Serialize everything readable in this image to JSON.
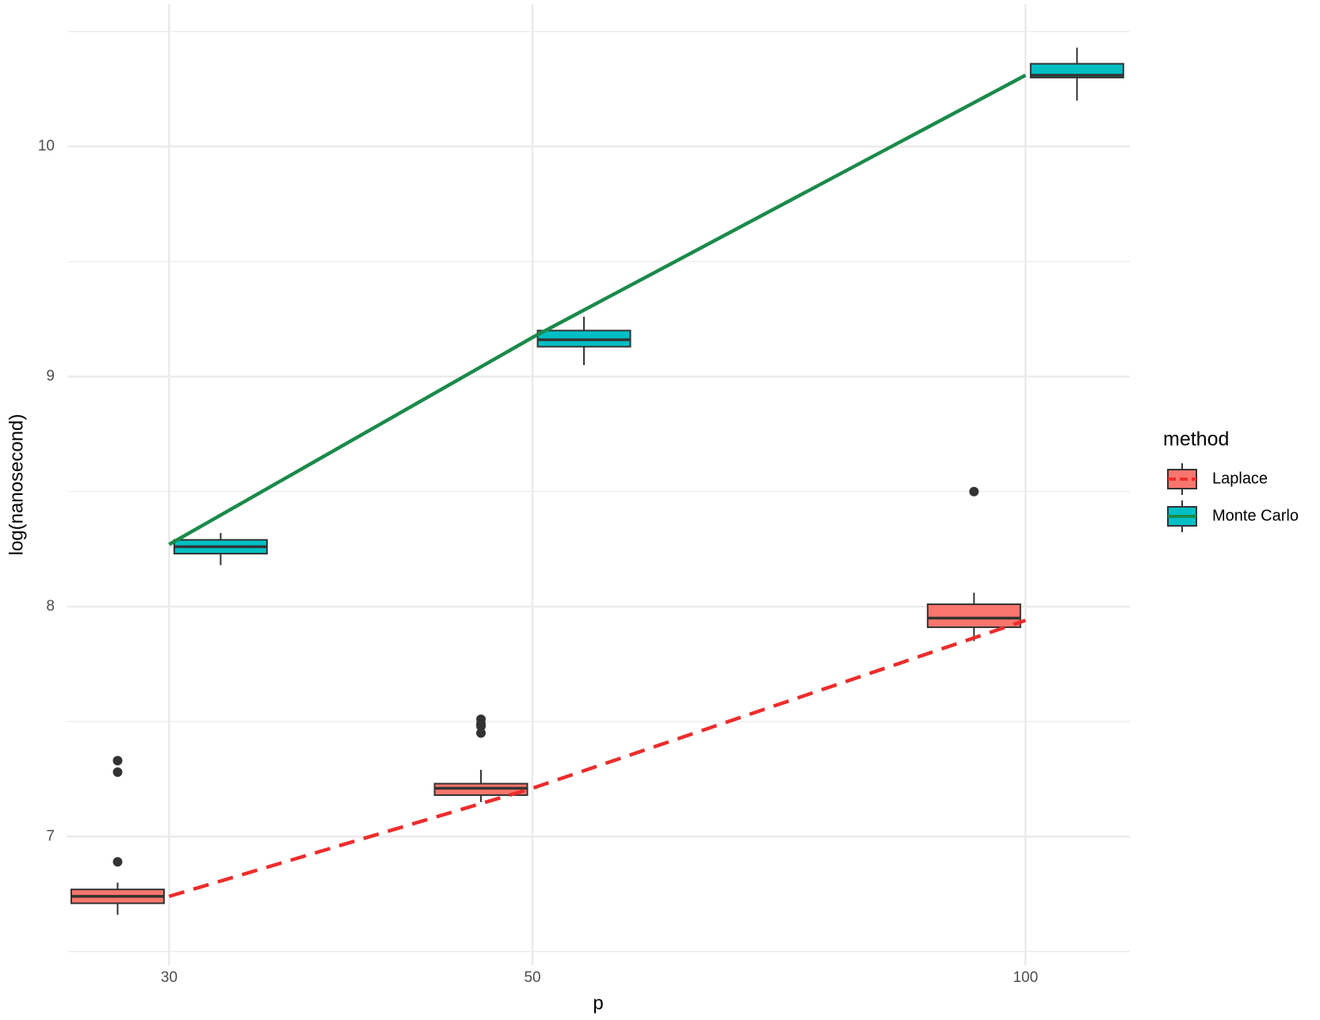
{
  "chart_data": {
    "type": "boxplot",
    "x_label": "p",
    "y_label": "log(nanosecond)",
    "legend_title": "method",
    "legend_position": "right",
    "x_log": true,
    "xlim": [
      26,
      115.8
    ],
    "xticks": [
      30,
      50,
      100
    ],
    "ylim": [
      6.44,
      10.62
    ],
    "yticks": [
      7,
      8,
      9,
      10
    ],
    "y_minor_grid": [
      6.5,
      7.5,
      8.5,
      9.5,
      10.5
    ],
    "grid": true,
    "series": [
      {
        "name": "Laplace",
        "color": "#F8766D",
        "line_color": "#EE2C2C",
        "line_dashed": true,
        "x": [
          30,
          50,
          100
        ],
        "boxes": [
          {
            "whislo": 6.66,
            "q1": 6.71,
            "median": 6.74,
            "q3": 6.77,
            "whishi": 6.8,
            "outliers": [
              7.33,
              7.28,
              6.89
            ]
          },
          {
            "whislo": 7.15,
            "q1": 7.18,
            "median": 7.21,
            "q3": 7.23,
            "whishi": 7.29,
            "outliers": [
              7.51,
              7.49,
              7.48,
              7.45
            ]
          },
          {
            "whislo": 7.85,
            "q1": 7.91,
            "median": 7.95,
            "q3": 8.01,
            "whishi": 8.06,
            "outliers": [
              8.5
            ]
          }
        ],
        "line_values": [
          6.74,
          7.21,
          7.94
        ]
      },
      {
        "name": "Monte Carlo",
        "color": "#00BFC4",
        "line_color": "#1B8A4A",
        "line_dashed": false,
        "x": [
          30,
          50,
          100
        ],
        "boxes": [
          {
            "whislo": 8.18,
            "q1": 8.23,
            "median": 8.26,
            "q3": 8.29,
            "whishi": 8.32,
            "outliers": []
          },
          {
            "whislo": 9.05,
            "q1": 9.13,
            "median": 9.16,
            "q3": 9.2,
            "whishi": 9.26,
            "outliers": []
          },
          {
            "whislo": 10.2,
            "q1": 10.3,
            "median": 10.31,
            "q3": 10.36,
            "whishi": 10.43,
            "outliers": []
          }
        ],
        "line_values": [
          8.27,
          9.17,
          10.31
        ]
      }
    ]
  }
}
